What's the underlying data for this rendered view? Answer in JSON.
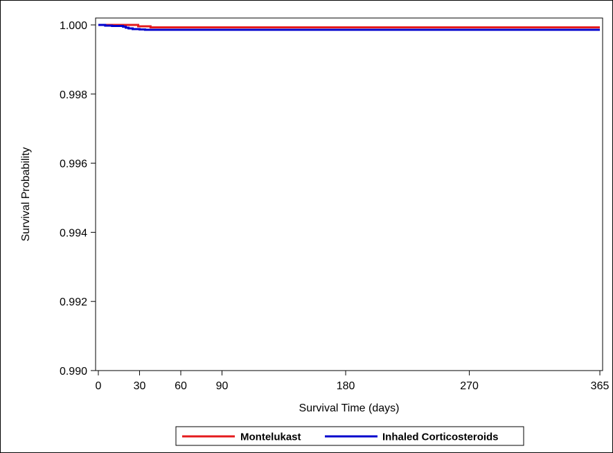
{
  "chart_data": {
    "type": "line",
    "xlabel": "Survival Time (days)",
    "ylabel": "Survival Probability",
    "xlim": [
      -2,
      367
    ],
    "ylim": [
      0.99,
      1.0002
    ],
    "xticks": [
      0,
      30,
      60,
      90,
      180,
      270,
      365
    ],
    "xtick_labels": [
      "0",
      "30",
      "60",
      "90",
      "180",
      "270",
      "365"
    ],
    "yticks": [
      0.99,
      0.992,
      0.994,
      0.996,
      0.998,
      1.0
    ],
    "ytick_labels": [
      "0.990",
      "0.992",
      "0.994",
      "0.996",
      "0.998",
      "1.000"
    ],
    "grid": false,
    "legend_position": "bottom",
    "series": [
      {
        "name": "Montelukast",
        "color": "#e41a1c",
        "step": true,
        "x": [
          0,
          28,
          29,
          36,
          38,
          365
        ],
        "y": [
          1.0,
          1.0,
          0.99996,
          0.99996,
          0.99993,
          0.99993
        ]
      },
      {
        "name": "Inhaled Corticosteroids",
        "color": "#0000cc",
        "step": true,
        "x": [
          0,
          5,
          10,
          18,
          20,
          22,
          25,
          30,
          34,
          365
        ],
        "y": [
          1.0,
          0.99998,
          0.99997,
          0.99995,
          0.99992,
          0.9999,
          0.99988,
          0.99987,
          0.99986,
          0.99986
        ]
      }
    ]
  }
}
